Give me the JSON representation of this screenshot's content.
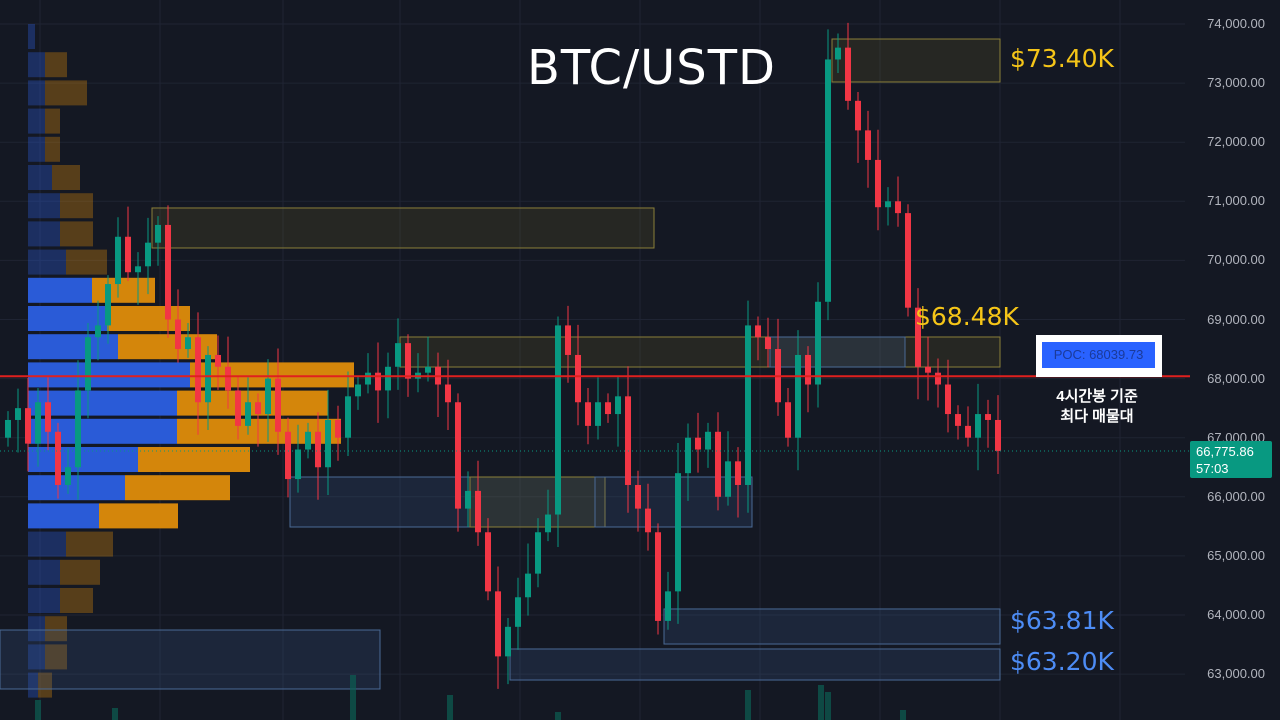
{
  "chart_data": {
    "type": "candlestick",
    "title": "BTC/USTD",
    "ylim": [
      62700,
      74200
    ],
    "y_ticks": [
      "74,000.00",
      "73,000.00",
      "72,000.00",
      "71,000.00",
      "70,000.00",
      "69,000.00",
      "68,000.00",
      "67,000.00",
      "66,000.00",
      "65,000.00",
      "64,000.00",
      "63,000.00"
    ],
    "y_tick_values": [
      74000,
      73000,
      72000,
      71000,
      70000,
      69000,
      68000,
      67000,
      66000,
      65000,
      64000,
      63000
    ],
    "grid": true,
    "colors": {
      "up": "#089981",
      "down": "#f23645",
      "background": "#141823",
      "poc_line": "#e0201e",
      "profile_up": "#2a5bd7",
      "profile_down": "#d4860b"
    },
    "first_open": 67000,
    "closes": [
      67300,
      67500,
      66900,
      67600,
      67100,
      66200,
      66500,
      67800,
      68700,
      68900,
      69600,
      70400,
      69800,
      69900,
      70300,
      70600,
      69000,
      68500,
      68700,
      67600,
      68400,
      68200,
      67800,
      67200,
      67600,
      67400,
      68000,
      67100,
      66300,
      66800,
      67100,
      66500,
      67300,
      67000,
      67700,
      67900,
      68100,
      67800,
      68200,
      68600,
      68000,
      68100,
      68200,
      67900,
      67600,
      65800,
      66100,
      65400,
      64400,
      63300,
      63800,
      64300,
      64700,
      65400,
      65700,
      68900,
      68400,
      67600,
      67200,
      67600,
      67400,
      67700,
      66200,
      65800,
      65400,
      63900,
      64400,
      66400,
      67000,
      66800,
      67100,
      66000,
      66600,
      66200,
      68900,
      68700,
      68500,
      67600,
      67000,
      68400,
      67900,
      69300,
      73400,
      73600,
      72700,
      72200,
      71700,
      70900,
      71000,
      70800,
      69200,
      68200,
      68100,
      67900,
      67400,
      67200,
      67000,
      67400,
      67300,
      66775.86
    ],
    "current_price": {
      "value": "66,775.86",
      "countdown": "57:03"
    },
    "poc": {
      "price": 68039.73,
      "label": "POC: 68039.73"
    },
    "volume_profile": {
      "bin_prices": [
        73800,
        73300,
        72800,
        72400,
        71900,
        71400,
        70900,
        70500,
        70000,
        69500,
        69000,
        68500,
        68000,
        67500,
        67000,
        66600,
        66100,
        65600,
        65100,
        64600,
        64100,
        63600,
        63100,
        62700
      ],
      "up_volume": [
        7,
        17,
        17,
        17,
        17,
        24,
        32,
        32,
        38,
        64,
        79,
        90,
        162,
        149,
        149,
        110,
        97,
        71,
        38,
        32,
        32,
        17,
        17,
        10
      ],
      "down_volume": [
        0,
        22,
        42,
        15,
        15,
        28,
        33,
        33,
        41,
        63,
        83,
        99,
        164,
        151,
        164,
        112,
        105,
        79,
        47,
        40,
        33,
        22,
        22,
        14
      ],
      "value_area": [
        9,
        17
      ]
    },
    "zones": [
      {
        "type": "supply",
        "from": 14.7,
        "to": 64.9,
        "top": 70887,
        "bottom": 70210
      },
      {
        "type": "supply",
        "from": 82.7,
        "to": 99.5,
        "top": 73746,
        "bottom": 73019
      },
      {
        "type": "supply",
        "from": 39.5,
        "to": 99.5,
        "top": 68704,
        "bottom": 68196
      },
      {
        "type": "demand",
        "from": 76.5,
        "to": 90,
        "top": 68704,
        "bottom": 68196
      },
      {
        "type": "demand",
        "from": 28.5,
        "to": 59,
        "top": 66335,
        "bottom": 65489
      },
      {
        "type": "supply",
        "from": 46.5,
        "to": 60,
        "top": 66335,
        "bottom": 65489
      },
      {
        "type": "demand",
        "from": 59,
        "to": 74.7,
        "top": 66335,
        "bottom": 65489
      },
      {
        "type": "demand",
        "from": -0.5,
        "to": 37.5,
        "top": 63746,
        "bottom": 62748
      },
      {
        "type": "demand",
        "from": 65.9,
        "to": 99.5,
        "top": 64102,
        "bottom": 63509
      },
      {
        "type": "demand",
        "from": 50.5,
        "to": 99.5,
        "top": 63425,
        "bottom": 62900
      }
    ],
    "annotations": {
      "level_1": {
        "text": "$73.40K",
        "color": "#f5c518"
      },
      "level_2": {
        "text": "$68.48K",
        "color": "#f5c518"
      },
      "level_3": {
        "text": "$63.81K",
        "color": "#4d8cf5"
      },
      "level_4": {
        "text": "$63.20K",
        "color": "#4d8cf5"
      },
      "poc_note_line1": "4시간봉 기준",
      "poc_note_line2": "최다 매물대"
    }
  }
}
